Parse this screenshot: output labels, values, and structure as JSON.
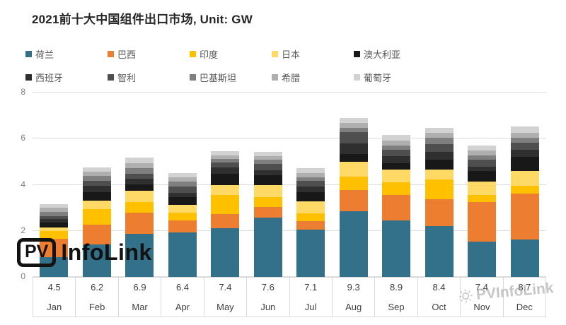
{
  "title": "2021前十大中国组件出口市场, Unit: GW",
  "logo": {
    "pv": "PV",
    "infolink": "InfoLink"
  },
  "watermark": "PVInfoLink",
  "colors": {
    "gridline": "#DCDCDC",
    "axis_text": "#7F7F7F",
    "table_text": "#404040",
    "legend_text": "#595959"
  },
  "chart_data": {
    "type": "bar",
    "subtype": "stacked",
    "title": "2021前十大中国组件出口市场, Unit: GW",
    "unit": "GW",
    "grid": true,
    "legend_position": "top",
    "ylim": [
      0,
      8
    ],
    "yticks": [
      0,
      2,
      4,
      6,
      8
    ],
    "categories": [
      "Jan",
      "Feb",
      "Mar",
      "Apr",
      "May",
      "Jun",
      "Jul",
      "Aug",
      "Sep",
      "Oct",
      "Nov",
      "Dec"
    ],
    "monthly_total_labels": [
      "4.5",
      "6.2",
      "6.9",
      "6.4",
      "7.4",
      "7.6",
      "7.1",
      "9.3",
      "8.9",
      "8.4",
      "7.4",
      "8.7"
    ],
    "series": [
      {
        "name": "荷兰",
        "color": "#33718A",
        "values": [
          0.86,
          1.42,
          1.88,
          1.93,
          2.12,
          2.59,
          2.05,
          2.85,
          2.44,
          2.22,
          1.54,
          1.64
        ]
      },
      {
        "name": "巴西",
        "color": "#ED7D31",
        "values": [
          0.8,
          0.84,
          0.92,
          0.51,
          0.61,
          0.46,
          0.37,
          0.92,
          1.13,
          1.16,
          1.7,
          1.98
        ]
      },
      {
        "name": "印度",
        "color": "#FFC000",
        "values": [
          0.32,
          0.67,
          0.46,
          0.36,
          0.82,
          0.43,
          0.35,
          0.59,
          0.54,
          0.85,
          0.31,
          0.34
        ]
      },
      {
        "name": "日本",
        "color": "#FFD966",
        "values": [
          0.18,
          0.38,
          0.48,
          0.33,
          0.45,
          0.52,
          0.51,
          0.64,
          0.55,
          0.44,
          0.6,
          0.63
        ]
      },
      {
        "name": "澳大利亚",
        "color": "#181818",
        "values": [
          0.2,
          0.36,
          0.29,
          0.34,
          0.49,
          0.41,
          0.39,
          0.34,
          0.29,
          0.43,
          0.44,
          0.61
        ]
      },
      {
        "name": "西班牙",
        "color": "#2F2F2F",
        "values": [
          0.14,
          0.28,
          0.22,
          0.17,
          0.25,
          0.23,
          0.26,
          0.47,
          0.28,
          0.34,
          0.18,
          0.31
        ]
      },
      {
        "name": "智利",
        "color": "#4F4F4F",
        "values": [
          0.13,
          0.22,
          0.24,
          0.29,
          0.24,
          0.26,
          0.23,
          0.47,
          0.28,
          0.33,
          0.31,
          0.33
        ]
      },
      {
        "name": "巴基斯坦",
        "color": "#7F7F7F",
        "values": [
          0.2,
          0.21,
          0.23,
          0.2,
          0.14,
          0.2,
          0.17,
          0.2,
          0.2,
          0.27,
          0.2,
          0.2
        ]
      },
      {
        "name": "希腊",
        "color": "#AFAFAF",
        "values": [
          0.18,
          0.2,
          0.23,
          0.2,
          0.16,
          0.15,
          0.18,
          0.19,
          0.21,
          0.21,
          0.21,
          0.23
        ]
      },
      {
        "name": "葡萄牙",
        "color": "#D2D2D2",
        "values": [
          0.15,
          0.18,
          0.22,
          0.19,
          0.18,
          0.18,
          0.2,
          0.22,
          0.24,
          0.23,
          0.22,
          0.26
        ]
      }
    ]
  }
}
